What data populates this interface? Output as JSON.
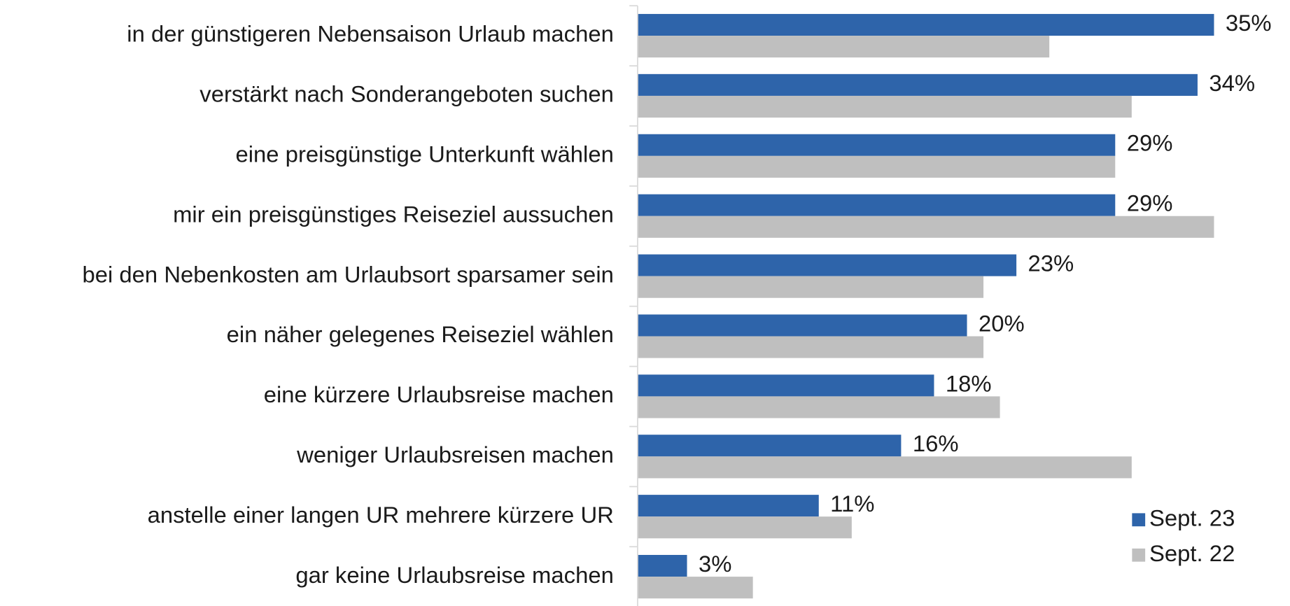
{
  "chart_data": {
    "type": "bar",
    "orientation": "horizontal",
    "categories": [
      "in der günstigeren Nebensaison Urlaub machen",
      "verstärkt nach Sonderangeboten suchen",
      "eine preisgünstige Unterkunft wählen",
      "mir ein preisgünstiges Reiseziel aussuchen",
      "bei den Nebenkosten am Urlaubsort sparsamer sein",
      "ein näher gelegenes Reiseziel wählen",
      "eine kürzere Urlaubsreise machen",
      "weniger Urlaubsreisen machen",
      "anstelle einer langen UR mehrere kürzere UR",
      "gar keine Urlaubsreise machen"
    ],
    "series": [
      {
        "name": "Sept. 23",
        "color": "#2e64aa",
        "values": [
          35,
          34,
          29,
          29,
          23,
          20,
          18,
          16,
          11,
          3
        ],
        "value_labels": [
          "35%",
          "34%",
          "29%",
          "29%",
          "23%",
          "20%",
          "18%",
          "16%",
          "11%",
          "3%"
        ]
      },
      {
        "name": "Sept. 22",
        "color": "#bfbfbf",
        "values": [
          25,
          30,
          29,
          35,
          21,
          21,
          22,
          30,
          13,
          7
        ]
      }
    ],
    "xlim": [
      0,
      39
    ],
    "legend": "lower right"
  }
}
